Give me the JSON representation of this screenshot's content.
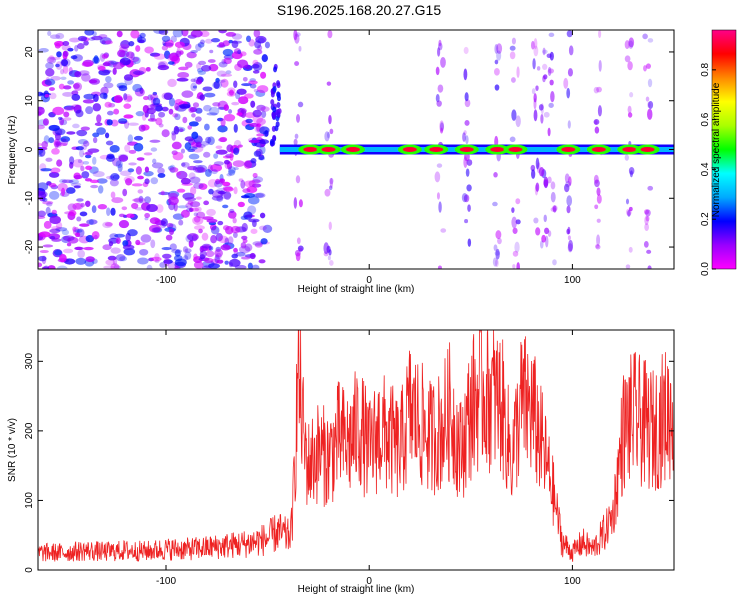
{
  "figure_title": "S196.2025.168.20.27.G15",
  "chart_data": [
    {
      "type": "heatmap",
      "xlabel": "Height of straight line (km)",
      "ylabel": "Frequency (Hz)",
      "xlim": [
        -163,
        150
      ],
      "ylim": [
        -24.5,
        24.5
      ],
      "x_ticks": [
        -100,
        0,
        100
      ],
      "y_ticks": [
        -20,
        -10,
        0,
        10,
        20
      ],
      "colorbar": {
        "label": "Normalized spectral amplitude",
        "range": [
          0,
          0.96
        ],
        "ticks": [
          0.0,
          0.2,
          0.4,
          0.6,
          0.8
        ],
        "colors": [
          "#ff00ff",
          "#9900ff",
          "#0000ff",
          "#00aaff",
          "#00ffff",
          "#00ff00",
          "#aaff00",
          "#ffff00",
          "#ff8800",
          "#ff0000",
          "#ff0088"
        ]
      },
      "features": {
        "noise_region_x": [
          -163,
          -50
        ],
        "noise_amplitude": 0.2,
        "ridge_frequency": 0,
        "ridge_start_x": -50,
        "ridge_amplitude_range": [
          0.3,
          0.96
        ],
        "peak_x": [
          -29,
          -20,
          -8,
          20,
          33,
          48,
          63,
          72,
          98,
          113,
          128,
          137
        ]
      }
    },
    {
      "type": "line",
      "xlabel": "Height of straight line (km)",
      "ylabel": "SNR (10 * v/v)",
      "xlim": [
        -163,
        150
      ],
      "ylim": [
        0,
        345
      ],
      "x_ticks": [
        -100,
        0,
        100
      ],
      "y_ticks": [
        0,
        100,
        200,
        300
      ],
      "line_color": "#ee2222",
      "series": [
        {
          "name": "",
          "x": [
            -163,
            -150,
            -140,
            -130,
            -120,
            -110,
            -100,
            -90,
            -80,
            -70,
            -60,
            -50,
            -45,
            -40,
            -38,
            -36,
            -35,
            -32,
            -30,
            -25,
            -20,
            -15,
            -10,
            -5,
            0,
            5,
            10,
            15,
            20,
            25,
            30,
            35,
            40,
            45,
            50,
            55,
            60,
            65,
            70,
            75,
            80,
            85,
            90,
            95,
            100,
            105,
            110,
            115,
            120,
            125,
            130,
            135,
            140,
            145,
            150
          ],
          "y": [
            25,
            25,
            28,
            26,
            28,
            27,
            30,
            30,
            32,
            35,
            38,
            45,
            55,
            48,
            60,
            200,
            300,
            180,
            150,
            170,
            160,
            190,
            180,
            210,
            170,
            200,
            190,
            170,
            230,
            210,
            190,
            200,
            230,
            170,
            230,
            260,
            250,
            240,
            160,
            240,
            230,
            180,
            120,
            40,
            25,
            40,
            30,
            50,
            80,
            200,
            220,
            210,
            200,
            220,
            230
          ]
        }
      ]
    }
  ]
}
